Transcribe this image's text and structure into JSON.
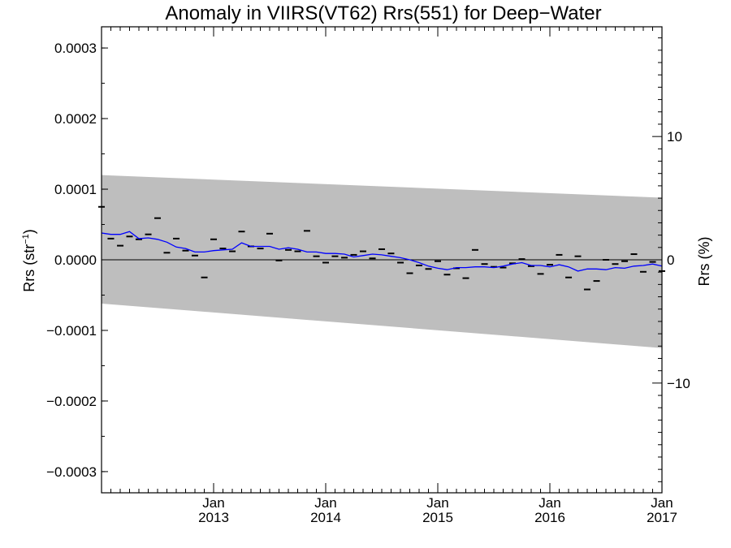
{
  "chart_data": {
    "type": "scatter",
    "title": "Anomaly in VIIRS(VT62) Rrs(551) for Deep−Water",
    "ylabel_left": {
      "base": "Rrs (str",
      "sup": "−1",
      "end": ")"
    },
    "ylabel_right": "Rrs (%)",
    "xlim": [
      2012.0,
      2017.0
    ],
    "ylim": [
      -0.00033,
      0.00033
    ],
    "right_ylim_percent": [
      -18.9,
      18.9
    ],
    "x_ticks": [
      {
        "x": 2013.0,
        "month": "Jan",
        "year": "2013"
      },
      {
        "x": 2014.0,
        "month": "Jan",
        "year": "2014"
      },
      {
        "x": 2015.0,
        "month": "Jan",
        "year": "2015"
      },
      {
        "x": 2016.0,
        "month": "Jan",
        "year": "2016"
      },
      {
        "x": 2017.0,
        "month": "Jan",
        "year": "2017"
      }
    ],
    "y_ticks_left": [
      {
        "value": 0.0003,
        "label": "0.0003"
      },
      {
        "value": 0.0002,
        "label": "0.0002"
      },
      {
        "value": 0.0001,
        "label": "0.0001"
      },
      {
        "value": 0.0,
        "label": "0.0000"
      },
      {
        "value": -0.0001,
        "label": "−0.0001"
      },
      {
        "value": -0.0002,
        "label": "−0.0002"
      },
      {
        "value": -0.0003,
        "label": "−0.0003"
      }
    ],
    "y_ticks_right": [
      {
        "value": 10,
        "label": "10"
      },
      {
        "value": 0,
        "label": "0"
      },
      {
        "value": -10,
        "label": "−10"
      }
    ],
    "uncertainty_band": {
      "color": "#bebebe",
      "upper": [
        [
          2012.0,
          0.00012
        ],
        [
          2017.0,
          8.8e-05
        ]
      ],
      "lower": [
        [
          2012.0,
          -6.2e-05
        ],
        [
          2017.0,
          -0.000125
        ]
      ]
    },
    "monthly_points": {
      "color": "#000000",
      "x": [
        2012.0,
        2012.083,
        2012.167,
        2012.25,
        2012.333,
        2012.417,
        2012.5,
        2012.583,
        2012.667,
        2012.75,
        2012.833,
        2012.917,
        2013.0,
        2013.083,
        2013.167,
        2013.25,
        2013.333,
        2013.417,
        2013.5,
        2013.583,
        2013.667,
        2013.75,
        2013.833,
        2013.917,
        2014.0,
        2014.083,
        2014.167,
        2014.25,
        2014.333,
        2014.417,
        2014.5,
        2014.583,
        2014.667,
        2014.75,
        2014.833,
        2014.917,
        2015.0,
        2015.083,
        2015.167,
        2015.25,
        2015.333,
        2015.417,
        2015.5,
        2015.583,
        2015.667,
        2015.75,
        2015.833,
        2015.917,
        2016.0,
        2016.083,
        2016.167,
        2016.25,
        2016.333,
        2016.417,
        2016.5,
        2016.583,
        2016.667,
        2016.75,
        2016.833,
        2016.917,
        2017.0
      ],
      "y": [
        7.5e-05,
        3e-05,
        2e-05,
        3.3e-05,
        2.9e-05,
        3.6e-05,
        5.9e-05,
        1e-05,
        3e-05,
        1.3e-05,
        6e-06,
        -2.5e-05,
        2.9e-05,
        1.6e-05,
        1.2e-05,
        4e-05,
        1.9e-05,
        1.6e-05,
        3.7e-05,
        -1e-06,
        1.4e-05,
        1.2e-05,
        4.1e-05,
        5e-06,
        -4e-06,
        5e-06,
        3e-06,
        7e-06,
        1.2e-05,
        2e-06,
        1.5e-05,
        9e-06,
        -4e-06,
        -1.9e-05,
        -8e-06,
        -1.3e-05,
        -2e-06,
        -2.1e-05,
        -1.2e-05,
        -2.6e-05,
        1.4e-05,
        -6e-06,
        -1e-05,
        -1.1e-05,
        -5e-06,
        1e-06,
        -9e-06,
        -2e-05,
        -7e-06,
        7e-06,
        -2.5e-05,
        5e-06,
        -4.2e-05,
        -3e-05,
        0.0,
        -6e-06,
        -2e-06,
        8e-06,
        -1.7e-05,
        -3e-06,
        -1.6e-05
      ]
    },
    "smoothed_line": {
      "color": "#0000ff",
      "x": [
        2012.0,
        2012.083,
        2012.167,
        2012.25,
        2012.333,
        2012.417,
        2012.5,
        2012.583,
        2012.667,
        2012.75,
        2012.833,
        2012.917,
        2013.0,
        2013.083,
        2013.167,
        2013.25,
        2013.333,
        2013.417,
        2013.5,
        2013.583,
        2013.667,
        2013.75,
        2013.833,
        2013.917,
        2014.0,
        2014.083,
        2014.167,
        2014.25,
        2014.333,
        2014.417,
        2014.5,
        2014.583,
        2014.667,
        2014.75,
        2014.833,
        2014.917,
        2015.0,
        2015.083,
        2015.167,
        2015.25,
        2015.333,
        2015.417,
        2015.5,
        2015.583,
        2015.667,
        2015.75,
        2015.833,
        2015.917,
        2016.0,
        2016.083,
        2016.167,
        2016.25,
        2016.333,
        2016.417,
        2016.5,
        2016.583,
        2016.667,
        2016.75,
        2016.833,
        2016.917,
        2017.0
      ],
      "y": [
        3.8e-05,
        3.6e-05,
        3.6e-05,
        4e-05,
        3e-05,
        3.1e-05,
        2.9e-05,
        2.5e-05,
        1.8e-05,
        1.6e-05,
        1.1e-05,
        1.1e-05,
        1.3e-05,
        1.4e-05,
        1.5e-05,
        2.4e-05,
        1.9e-05,
        1.9e-05,
        1.9e-05,
        1.5e-05,
        1.7e-05,
        1.5e-05,
        1.1e-05,
        1.1e-05,
        9e-06,
        9e-06,
        8e-06,
        4e-06,
        6e-06,
        8e-06,
        7e-06,
        5e-06,
        3e-06,
        0.0,
        -4e-06,
        -9e-06,
        -1.2e-05,
        -1.4e-05,
        -1.1e-05,
        -1.1e-05,
        -1e-05,
        -1e-05,
        -1.1e-05,
        -9e-06,
        -6e-06,
        -4e-06,
        -8e-06,
        -8e-06,
        -1e-05,
        -7e-06,
        -1e-05,
        -1.6e-05,
        -1.3e-05,
        -1.3e-05,
        -1.4e-05,
        -1.1e-05,
        -1.2e-05,
        -9e-06,
        -8e-06,
        -6e-06,
        -9e-06
      ]
    },
    "zero_line": 0.0
  }
}
